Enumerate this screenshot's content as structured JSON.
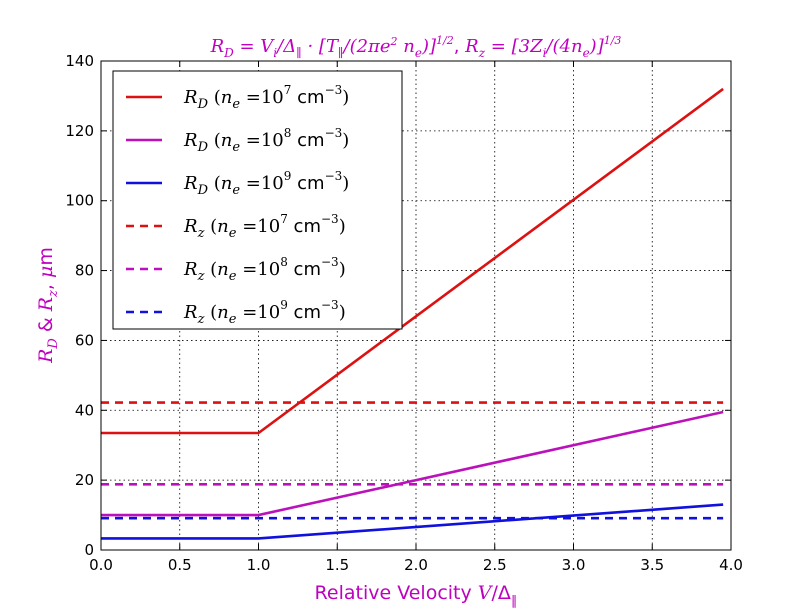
{
  "colors": {
    "red": "#dd1111",
    "magenta": "#bb11bb",
    "blue": "#1111dd",
    "label": "#bf00bf"
  },
  "chart_data": {
    "type": "line",
    "title": "R_D = V_i/Δ_∥ · [T_∥/(2πe² n_e)]^1/2 , R_z = [3Z_i/(4n_e)]^1/3",
    "xlabel": "Relative Velocity V/Δ_∥",
    "ylabel": "R_D & R_z, μm",
    "xlim": [
      0.0,
      4.0
    ],
    "ylim": [
      0,
      140
    ],
    "xticks": [
      "0.0",
      "0.5",
      "1.0",
      "1.5",
      "2.0",
      "2.5",
      "3.0",
      "3.5",
      "4.0"
    ],
    "yticks": [
      "0",
      "20",
      "40",
      "60",
      "80",
      "100",
      "120",
      "140"
    ],
    "grid": true,
    "legend_position": "upper-left",
    "series": [
      {
        "name": "R_D (n_e = 10^7 cm^-3)",
        "style": "solid",
        "color": "#dd1111",
        "x": [
          0.0,
          1.0,
          3.95
        ],
        "y": [
          33.5,
          33.5,
          132
        ]
      },
      {
        "name": "R_D (n_e = 10^8 cm^-3)",
        "style": "solid",
        "color": "#bb11bb",
        "x": [
          0.0,
          1.0,
          3.95
        ],
        "y": [
          10.0,
          10.0,
          39.5
        ]
      },
      {
        "name": "R_D (n_e = 10^9 cm^-3)",
        "style": "solid",
        "color": "#1111dd",
        "x": [
          0.0,
          1.0,
          3.95
        ],
        "y": [
          3.3,
          3.3,
          13.0
        ]
      },
      {
        "name": "R_z (n_e = 10^7 cm^-3)",
        "style": "dashed",
        "color": "#dd1111",
        "x": [
          0.0,
          3.95
        ],
        "y": [
          42.2,
          42.2
        ]
      },
      {
        "name": "R_z (n_e = 10^8 cm^-3)",
        "style": "dashed",
        "color": "#bb11bb",
        "x": [
          0.0,
          3.95
        ],
        "y": [
          18.8,
          18.8
        ]
      },
      {
        "name": "R_z (n_e = 10^9 cm^-3)",
        "style": "dashed",
        "color": "#1111dd",
        "x": [
          0.0,
          3.95
        ],
        "y": [
          9.1,
          9.1
        ]
      }
    ]
  }
}
